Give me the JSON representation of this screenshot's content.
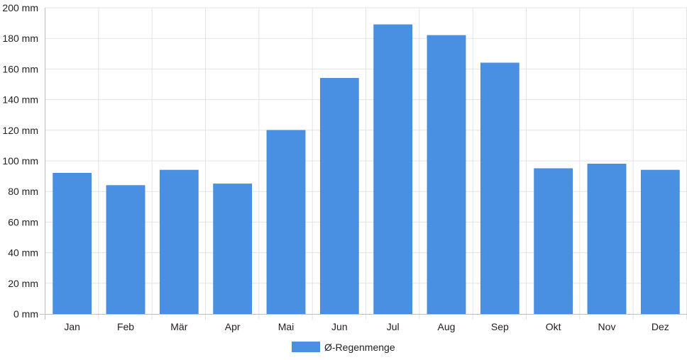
{
  "chart_data": {
    "type": "bar",
    "categories": [
      "Jan",
      "Feb",
      "Mär",
      "Apr",
      "Mai",
      "Jun",
      "Jul",
      "Aug",
      "Sep",
      "Okt",
      "Nov",
      "Dez"
    ],
    "series": [
      {
        "name": "Ø-Regenmenge",
        "values": [
          92,
          84,
          94,
          85,
          120,
          154,
          189,
          182,
          164,
          95,
          98,
          94
        ]
      }
    ],
    "ylim": [
      0,
      200
    ],
    "y_ticks": [
      0,
      20,
      40,
      60,
      80,
      100,
      120,
      140,
      160,
      180,
      200
    ],
    "y_unit": "mm",
    "grid": true,
    "legend": "bottom-center",
    "bar_color": "#4a90e2"
  }
}
